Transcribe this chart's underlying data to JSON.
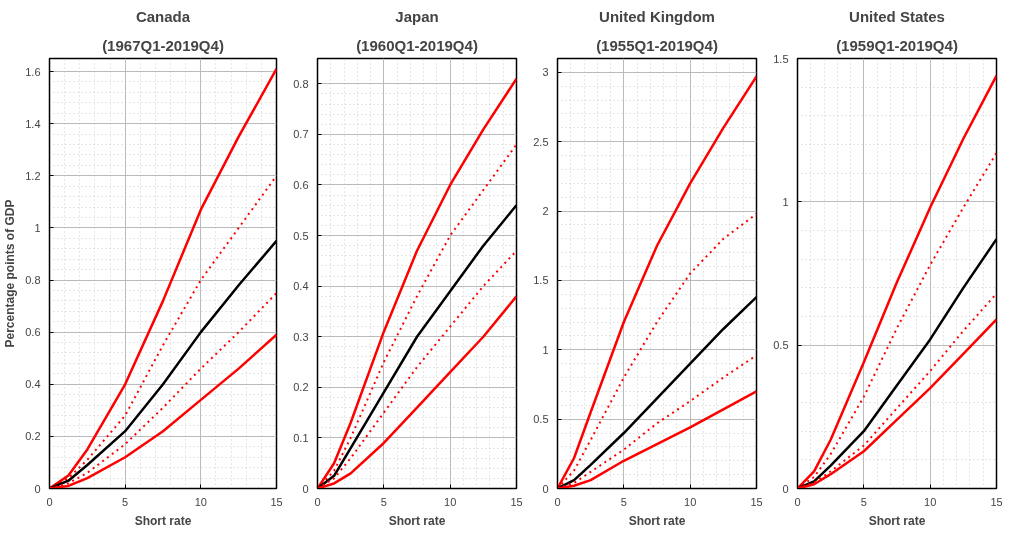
{
  "chart_data": [
    {
      "type": "line",
      "title": "Canada",
      "subtitle": "(1967Q1-2019Q4)",
      "xlabel": "Short rate",
      "ylabel": "Percentage points of GDP",
      "x": [
        0,
        1.25,
        2.5,
        5,
        7.5,
        10,
        12.5,
        15
      ],
      "xlim": [
        0,
        15
      ],
      "xticks": [
        0,
        5,
        10,
        15
      ],
      "ylim": [
        0,
        1.65
      ],
      "yticks": [
        0,
        0.2,
        0.4,
        0.6,
        0.8,
        1,
        1.2,
        1.4,
        1.6
      ],
      "grid": true,
      "series": [
        {
          "color": "#ff0000",
          "line_style": "solid",
          "values": [
            0,
            0.05,
            0.15,
            0.4,
            0.72,
            1.07,
            1.35,
            1.61
          ]
        },
        {
          "color": "#ff0000",
          "line_style": "dotted",
          "values": [
            0,
            0.04,
            0.11,
            0.28,
            0.55,
            0.8,
            1.0,
            1.2
          ]
        },
        {
          "color": "#000000",
          "line_style": "solid",
          "values": [
            0,
            0.03,
            0.09,
            0.22,
            0.4,
            0.6,
            0.78,
            0.95
          ]
        },
        {
          "color": "#ff0000",
          "line_style": "dotted",
          "values": [
            0,
            0.02,
            0.06,
            0.17,
            0.31,
            0.46,
            0.6,
            0.75
          ]
        },
        {
          "color": "#ff0000",
          "line_style": "solid",
          "values": [
            0,
            0.01,
            0.04,
            0.12,
            0.22,
            0.34,
            0.46,
            0.59
          ]
        }
      ]
    },
    {
      "type": "line",
      "title": "Japan",
      "subtitle": "(1960Q1-2019Q4)",
      "xlabel": "Short rate",
      "x": [
        0,
        1.25,
        2.5,
        5,
        7.5,
        10,
        12.5,
        15
      ],
      "xlim": [
        0,
        15
      ],
      "xticks": [
        0,
        5,
        10,
        15
      ],
      "ylim": [
        0,
        0.85
      ],
      "yticks": [
        0,
        0.1,
        0.2,
        0.3,
        0.4,
        0.5,
        0.6,
        0.7,
        0.8
      ],
      "grid": true,
      "series": [
        {
          "color": "#ff0000",
          "line_style": "solid",
          "values": [
            0,
            0.05,
            0.13,
            0.31,
            0.47,
            0.6,
            0.71,
            0.81
          ]
        },
        {
          "color": "#ff0000",
          "line_style": "dotted",
          "values": [
            0,
            0.035,
            0.1,
            0.25,
            0.38,
            0.5,
            0.59,
            0.68
          ]
        },
        {
          "color": "#000000",
          "line_style": "solid",
          "values": [
            0,
            0.025,
            0.08,
            0.19,
            0.3,
            0.39,
            0.48,
            0.56
          ]
        },
        {
          "color": "#ff0000",
          "line_style": "dotted",
          "values": [
            0,
            0.02,
            0.06,
            0.15,
            0.24,
            0.32,
            0.4,
            0.47
          ]
        },
        {
          "color": "#ff0000",
          "line_style": "solid",
          "values": [
            0,
            0.01,
            0.03,
            0.09,
            0.16,
            0.23,
            0.3,
            0.38
          ]
        }
      ]
    },
    {
      "type": "line",
      "title": "United Kingdom",
      "subtitle": "(1955Q1-2019Q4)",
      "xlabel": "Short rate",
      "x": [
        0,
        1.25,
        2.5,
        5,
        7.5,
        10,
        12.5,
        15
      ],
      "xlim": [
        0,
        15
      ],
      "xticks": [
        0,
        5,
        10,
        15
      ],
      "ylim": [
        0,
        3.1
      ],
      "yticks": [
        0,
        0.5,
        1,
        1.5,
        2,
        2.5,
        3
      ],
      "grid": true,
      "series": [
        {
          "color": "#ff0000",
          "line_style": "solid",
          "values": [
            0,
            0.22,
            0.55,
            1.2,
            1.75,
            2.2,
            2.6,
            2.97
          ]
        },
        {
          "color": "#ff0000",
          "line_style": "dotted",
          "values": [
            0,
            0.13,
            0.35,
            0.8,
            1.2,
            1.55,
            1.8,
            1.98
          ]
        },
        {
          "color": "#000000",
          "line_style": "solid",
          "values": [
            0,
            0.06,
            0.17,
            0.4,
            0.65,
            0.9,
            1.15,
            1.38
          ]
        },
        {
          "color": "#ff0000",
          "line_style": "dotted",
          "values": [
            0,
            0.04,
            0.12,
            0.28,
            0.47,
            0.63,
            0.8,
            0.96
          ]
        },
        {
          "color": "#ff0000",
          "line_style": "solid",
          "values": [
            0,
            0.02,
            0.06,
            0.2,
            0.32,
            0.44,
            0.57,
            0.7
          ]
        }
      ]
    },
    {
      "type": "line",
      "title": "United States",
      "subtitle": "(1959Q1-2019Q4)",
      "xlabel": "Short rate",
      "x": [
        0,
        1.25,
        2.5,
        5,
        7.5,
        10,
        12.5,
        15
      ],
      "xlim": [
        0,
        15
      ],
      "xticks": [
        0,
        5,
        10,
        15
      ],
      "ylim": [
        0,
        1.5
      ],
      "yticks": [
        0,
        0.5,
        1,
        1.5
      ],
      "grid": true,
      "series": [
        {
          "color": "#ff0000",
          "line_style": "solid",
          "values": [
            0,
            0.06,
            0.17,
            0.44,
            0.72,
            0.98,
            1.22,
            1.44
          ]
        },
        {
          "color": "#ff0000",
          "line_style": "dotted",
          "values": [
            0,
            0.04,
            0.12,
            0.32,
            0.56,
            0.78,
            0.98,
            1.17
          ]
        },
        {
          "color": "#000000",
          "line_style": "solid",
          "values": [
            0,
            0.025,
            0.08,
            0.2,
            0.36,
            0.52,
            0.7,
            0.87
          ]
        },
        {
          "color": "#ff0000",
          "line_style": "dotted",
          "values": [
            0,
            0.02,
            0.06,
            0.15,
            0.28,
            0.41,
            0.55,
            0.68
          ]
        },
        {
          "color": "#ff0000",
          "line_style": "solid",
          "values": [
            0,
            0.015,
            0.05,
            0.13,
            0.24,
            0.35,
            0.47,
            0.59
          ]
        }
      ]
    }
  ]
}
